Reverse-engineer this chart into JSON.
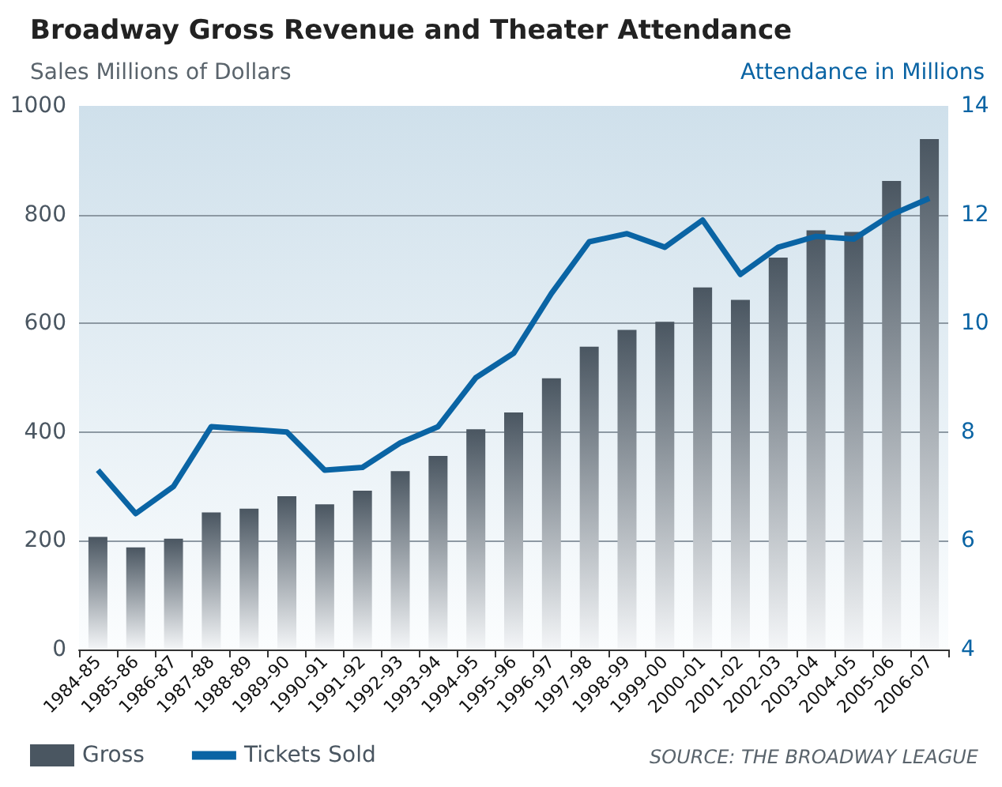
{
  "chart_data": {
    "type": "bar",
    "title": "Broadway Gross Revenue and Theater Attendance",
    "ylabel": "Sales Millions of Dollars",
    "y2label": "Attendance in Millions",
    "categories": [
      "1984-85",
      "1985-86",
      "1986-87",
      "1987-88",
      "1988-89",
      "1989-90",
      "1990-91",
      "1991-92",
      "1992-93",
      "1993-94",
      "1994-95",
      "1995-96",
      "1996-97",
      "1997-98",
      "1998-99",
      "1999-00",
      "2000-01",
      "2001-02",
      "2002-03",
      "2003-04",
      "2004-05",
      "2005-06",
      "2006-07"
    ],
    "series": [
      {
        "name": "Gross",
        "color": "#4a5661",
        "values": [
          207,
          188,
          204,
          252,
          259,
          282,
          267,
          292,
          328,
          356,
          405,
          436,
          499,
          557,
          588,
          603,
          666,
          643,
          721,
          771,
          768,
          862,
          939
        ]
      },
      {
        "name": "Tickets Sold",
        "type": "line",
        "axis": "y2",
        "color": "#0a64a4",
        "values": [
          7.3,
          6.5,
          7.0,
          8.1,
          8.05,
          8.0,
          7.3,
          7.35,
          7.8,
          8.1,
          9.0,
          9.45,
          10.55,
          11.5,
          11.65,
          11.4,
          11.9,
          10.9,
          11.4,
          11.6,
          11.55,
          12.0,
          12.3
        ]
      }
    ],
    "ylim": [
      0,
      1000
    ],
    "yticks": [
      0,
      200,
      400,
      600,
      800,
      1000
    ],
    "y2lim": [
      4,
      14
    ],
    "y2ticks": [
      4,
      6,
      8,
      10,
      12,
      14
    ],
    "grid": "y",
    "legend": "bottom left",
    "marker": "none",
    "annotations": [
      "SOURCE: THE BROADWAY LEAGUE"
    ]
  }
}
